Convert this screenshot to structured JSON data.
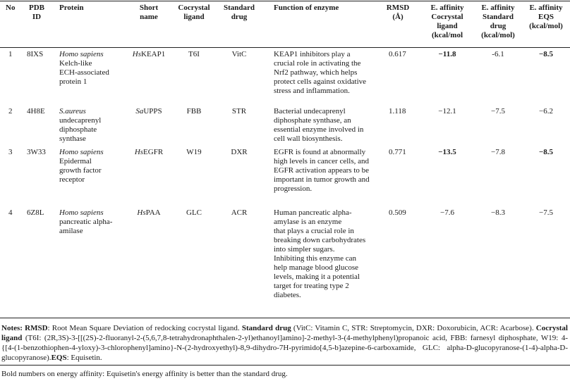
{
  "table": {
    "headers": {
      "no": "No",
      "pdb": [
        "PDB",
        "ID"
      ],
      "protein": "Protein",
      "short_name": [
        "Short",
        "name"
      ],
      "cocrystal": [
        "Cocrystal",
        "ligand"
      ],
      "standard": [
        "Standard",
        "drug"
      ],
      "function": "Function of enzyme",
      "rmsd": [
        "RMSD",
        "(Å)"
      ],
      "ea_cocrystal": [
        "E. affinity",
        "Cocrystal",
        "ligand",
        "(kcal/mol"
      ],
      "ea_standard": [
        "E. affinity",
        "Standard",
        "drug",
        "(kcal/mol)"
      ],
      "ea_eqs": [
        "E. affinity",
        "EQS",
        "(kcal/mol)"
      ]
    },
    "rows": [
      {
        "no": "1",
        "pdb": "8IXS",
        "protein_species": "Homo sapiens",
        "protein_name": [
          "Kelch-like",
          "ECH-associated",
          "protein 1"
        ],
        "short_prefix": "Hs",
        "short_rest": "KEAP1",
        "cocrystal": "T6I",
        "standard": "VitC",
        "function": [
          "KEAP1 inhibitors play a",
          "crucial role in activating the",
          "Nrf2 pathway, which helps",
          "protect cells against oxidative",
          "stress and inflammation."
        ],
        "rmsd": "0.617",
        "ea_cocrystal": "−11.8",
        "ea_standard": "-6.1",
        "ea_eqs": "−8.5"
      },
      {
        "no": "2",
        "pdb": "4H8E",
        "protein_species": "S.aureus",
        "protein_name": [
          "undecaprenyl",
          "diphosphate",
          "synthase"
        ],
        "short_prefix": "Sa",
        "short_rest": "UPPS",
        "cocrystal": "FBB",
        "standard": "STR",
        "function": [
          "Bacterial undecaprenyl",
          "diphosphate synthase, an",
          "essential enzyme involved in",
          "cell wall biosynthesis."
        ],
        "rmsd": "1.118",
        "ea_cocrystal": "−12.1",
        "ea_standard": "−7.5",
        "ea_eqs": "−6.2"
      },
      {
        "no": "3",
        "pdb": "3W33",
        "protein_species": "Homo sapiens",
        "protein_name": [
          "Epidermal",
          "growth factor",
          "receptor"
        ],
        "short_prefix": "Hs",
        "short_rest": "EGFR",
        "cocrystal": "W19",
        "standard": "DXR",
        "function": [
          "EGFR is found at abnormally",
          "high levels in cancer cells, and",
          "EGFR activation appears to be",
          "important in tumor growth and",
          "progression."
        ],
        "rmsd": "0.771",
        "ea_cocrystal": "−13.5",
        "ea_standard": "−7.8",
        "ea_eqs": "−8.5"
      },
      {
        "no": "4",
        "pdb": "6Z8L",
        "protein_species": "Homo sapiens",
        "protein_name": [
          "pancreatic alpha-",
          "amilase"
        ],
        "short_prefix": "Hs",
        "short_rest": "PAA",
        "cocrystal": "GLC",
        "standard": "ACR",
        "function": [
          "Human pancreatic alpha-",
          "amylase is an enzyme",
          "that plays a crucial role in",
          "breaking down carbohydrates",
          "into simpler sugars.",
          "Inhibiting this enzyme can",
          "help manage blood glucose",
          "levels, making it a potential",
          "target for treating type 2",
          "diabetes."
        ],
        "rmsd": "0.509",
        "ea_cocrystal": "−7.6",
        "ea_standard": "−8.3",
        "ea_eqs": "−7.5"
      }
    ]
  },
  "notes": {
    "label": "Notes:",
    "rmsd_label": "RMSD",
    "rmsd_text": ": Root Mean Square Deviation of redocking cocrystal ligand. ",
    "standard_label": "Standard drug",
    "standard_text": " (VitC: Vitamin C, STR: Streptomycin, DXR: Doxorubicin, ACR: Acarbose). ",
    "cocrystal_label": "Cocrystal ligand",
    "cocrystal_text": " (T6I: (2R,3S)-3-[[(2S)-2-fluoranyl-2-(5,6,7,8-tetrahydronaphthalen-2-yl)ethanoyl]amino]-2-methyl-3-(4-methylphenyl)propanoic acid, FBB: farnesyl diphosphate, W19: 4-{[4-(1-benzothiophen-4-yloxy)-3-chlorophenyl]amino}-N-(2-hydroxyethyl)-8,9-dihydro-7H-pyrimido[4,5-b]azepine-6-carboxamide, GLC: alpha-D-glucopyranose-(1-4)-alpha-D-glucopyranose).",
    "eqs_label": "EQS",
    "eqs_text": ": Equisetin.",
    "bold_note": "Bold numbers on energy affinity: Equisetin's energy affinity is better than the standard drug."
  }
}
